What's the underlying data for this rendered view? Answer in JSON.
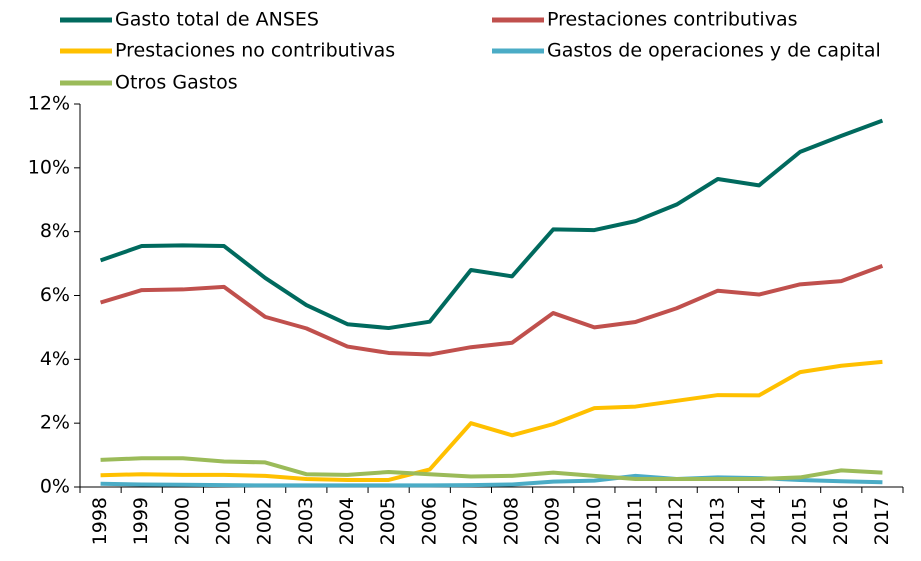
{
  "chart_data": {
    "type": "line",
    "categories": [
      "1998",
      "1999",
      "2000",
      "2001",
      "2002",
      "2003",
      "2004",
      "2005",
      "2006",
      "2007",
      "2008",
      "2009",
      "2010",
      "2011",
      "2012",
      "2013",
      "2014",
      "2015",
      "2016",
      "2017"
    ],
    "series": [
      {
        "name": "Gasto total de ANSES",
        "color": "#006a5e",
        "values": [
          7.1,
          7.55,
          7.57,
          7.55,
          6.55,
          5.7,
          5.1,
          4.98,
          5.18,
          6.8,
          6.6,
          8.07,
          8.05,
          8.33,
          8.85,
          9.65,
          9.45,
          10.5,
          11.0,
          11.48
        ]
      },
      {
        "name": "Prestaciones contributivas",
        "color": "#c0504d",
        "values": [
          5.78,
          6.17,
          6.19,
          6.27,
          5.33,
          4.97,
          4.4,
          4.2,
          4.15,
          4.38,
          4.52,
          5.45,
          5.0,
          5.17,
          5.6,
          6.15,
          6.03,
          6.35,
          6.45,
          6.93
        ]
      },
      {
        "name": "Prestaciones no contributivas",
        "color": "#ffc000",
        "values": [
          0.37,
          0.4,
          0.38,
          0.38,
          0.35,
          0.25,
          0.22,
          0.22,
          0.55,
          2.0,
          1.62,
          1.97,
          2.47,
          2.52,
          2.7,
          2.88,
          2.87,
          3.6,
          3.8,
          3.92
        ]
      },
      {
        "name": "Gastos de operaciones y de capital",
        "color": "#4bacc6",
        "values": [
          0.1,
          0.08,
          0.07,
          0.06,
          0.05,
          0.05,
          0.05,
          0.05,
          0.05,
          0.06,
          0.08,
          0.17,
          0.2,
          0.35,
          0.25,
          0.3,
          0.28,
          0.22,
          0.18,
          0.15
        ]
      },
      {
        "name": "Otros Gastos",
        "color": "#9bbb59",
        "values": [
          0.85,
          0.9,
          0.9,
          0.8,
          0.77,
          0.4,
          0.38,
          0.47,
          0.4,
          0.33,
          0.35,
          0.45,
          0.35,
          0.25,
          0.25,
          0.25,
          0.25,
          0.3,
          0.52,
          0.45
        ]
      }
    ],
    "ylim": [
      0,
      12
    ],
    "yticks": [
      {
        "value": 0,
        "label": "0%"
      },
      {
        "value": 2,
        "label": "2%"
      },
      {
        "value": 4,
        "label": "4%"
      },
      {
        "value": 6,
        "label": "6%"
      },
      {
        "value": 8,
        "label": "8%"
      },
      {
        "value": 10,
        "label": "10%"
      },
      {
        "value": 12,
        "label": "12%"
      }
    ],
    "grid": false
  }
}
